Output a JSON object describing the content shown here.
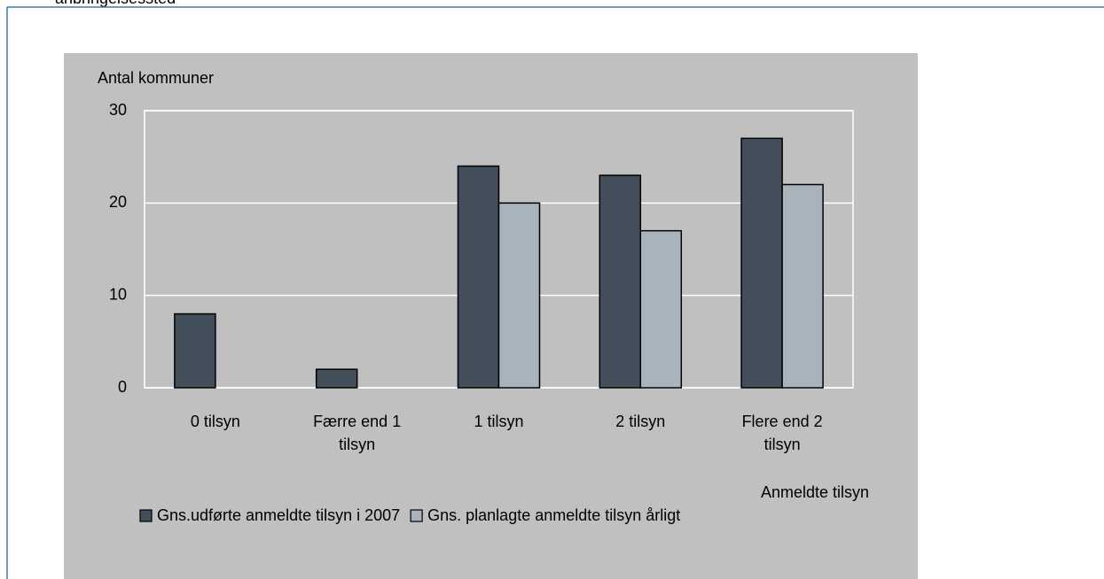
{
  "caption_fragment": "anbringelsessted",
  "chart_data": {
    "type": "bar",
    "y_label": "Antal kommuner",
    "x_label": "Anmeldte tilsyn",
    "categories": [
      "0 tilsyn",
      "Færre end 1 tilsyn",
      "1 tilsyn",
      "2 tilsyn",
      "Flere end 2 tilsyn"
    ],
    "series": [
      {
        "name": "Gns.udførte anmeldte tilsyn i 2007",
        "color": "#424f5a",
        "values": [
          8,
          2,
          24,
          23,
          27
        ]
      },
      {
        "name": "Gns. planlagte anmeldte tilsyn årligt",
        "color": "#a9b3bb",
        "values": [
          0,
          0,
          20,
          17,
          22
        ]
      }
    ],
    "ylim": [
      0,
      30
    ],
    "yticks": [
      0,
      10,
      20,
      30
    ],
    "grid": true,
    "legend": "bottom"
  }
}
